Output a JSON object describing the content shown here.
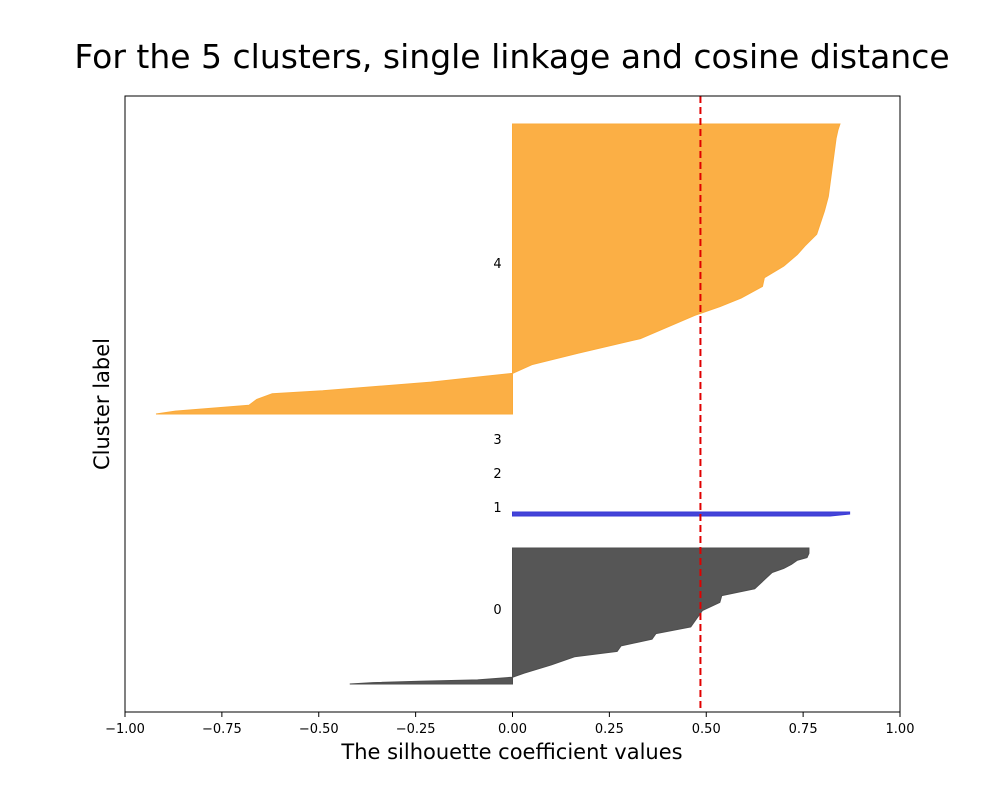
{
  "chart_data": {
    "type": "area",
    "title": "For the 5 clusters, single linkage and cosine distance",
    "xlabel": "The silhouette coefficient values",
    "ylabel": "Cluster label",
    "xlim": [
      -1.0,
      1.0
    ],
    "x_ticks": [
      "−1.00",
      "−0.75",
      "−0.50",
      "−0.25",
      "0.00",
      "0.25",
      "0.50",
      "0.75",
      "1.00"
    ],
    "x_tick_values": [
      -1.0,
      -0.75,
      -0.5,
      -0.25,
      0.0,
      0.25,
      0.5,
      0.75,
      1.0
    ],
    "grid": false,
    "average_silhouette": 0.485,
    "average_line_color": "#e00000",
    "clusters": [
      {
        "label": "0",
        "color": "#4d4d4d",
        "profile": [
          [
            0.0,
            0.765
          ],
          [
            0.04,
            0.765
          ],
          [
            0.07,
            0.76
          ],
          [
            0.09,
            0.735
          ],
          [
            0.12,
            0.72
          ],
          [
            0.15,
            0.7
          ],
          [
            0.18,
            0.67
          ],
          [
            0.22,
            0.655
          ],
          [
            0.26,
            0.64
          ],
          [
            0.3,
            0.625
          ],
          [
            0.35,
            0.54
          ],
          [
            0.4,
            0.535
          ],
          [
            0.46,
            0.49
          ],
          [
            0.52,
            0.475
          ],
          [
            0.58,
            0.46
          ],
          [
            0.63,
            0.37
          ],
          [
            0.67,
            0.36
          ],
          [
            0.72,
            0.28
          ],
          [
            0.76,
            0.27
          ],
          [
            0.8,
            0.16
          ],
          [
            0.86,
            0.1
          ],
          [
            0.92,
            0.03
          ],
          [
            0.95,
            0.0
          ],
          [
            0.97,
            -0.09
          ],
          [
            0.98,
            -0.24
          ],
          [
            0.99,
            -0.36
          ],
          [
            1.0,
            -0.42
          ]
        ]
      },
      {
        "label": "1",
        "color": "#3a3ad6",
        "profile": [
          [
            0.0,
            0.87
          ],
          [
            0.5,
            0.87
          ],
          [
            1.0,
            0.82
          ]
        ]
      },
      {
        "label": "2",
        "color": "#3cb371",
        "profile": []
      },
      {
        "label": "3",
        "color": "#b5e61d",
        "profile": []
      },
      {
        "label": "4",
        "color": "#fbab3b",
        "profile": [
          [
            0.0,
            0.845
          ],
          [
            0.02,
            0.84
          ],
          [
            0.05,
            0.835
          ],
          [
            0.1,
            0.83
          ],
          [
            0.15,
            0.825
          ],
          [
            0.2,
            0.82
          ],
          [
            0.25,
            0.815
          ],
          [
            0.3,
            0.805
          ],
          [
            0.34,
            0.795
          ],
          [
            0.38,
            0.785
          ],
          [
            0.42,
            0.755
          ],
          [
            0.45,
            0.735
          ],
          [
            0.49,
            0.7
          ],
          [
            0.53,
            0.65
          ],
          [
            0.56,
            0.645
          ],
          [
            0.6,
            0.59
          ],
          [
            0.63,
            0.535
          ],
          [
            0.66,
            0.47
          ],
          [
            0.7,
            0.4
          ],
          [
            0.74,
            0.33
          ],
          [
            0.79,
            0.17
          ],
          [
            0.83,
            0.05
          ],
          [
            0.86,
            0.0
          ],
          [
            0.87,
            -0.07
          ],
          [
            0.89,
            -0.21
          ],
          [
            0.92,
            -0.49
          ],
          [
            0.93,
            -0.62
          ],
          [
            0.95,
            -0.66
          ],
          [
            0.97,
            -0.68
          ],
          [
            0.99,
            -0.87
          ],
          [
            1.0,
            -0.92
          ]
        ]
      }
    ]
  }
}
